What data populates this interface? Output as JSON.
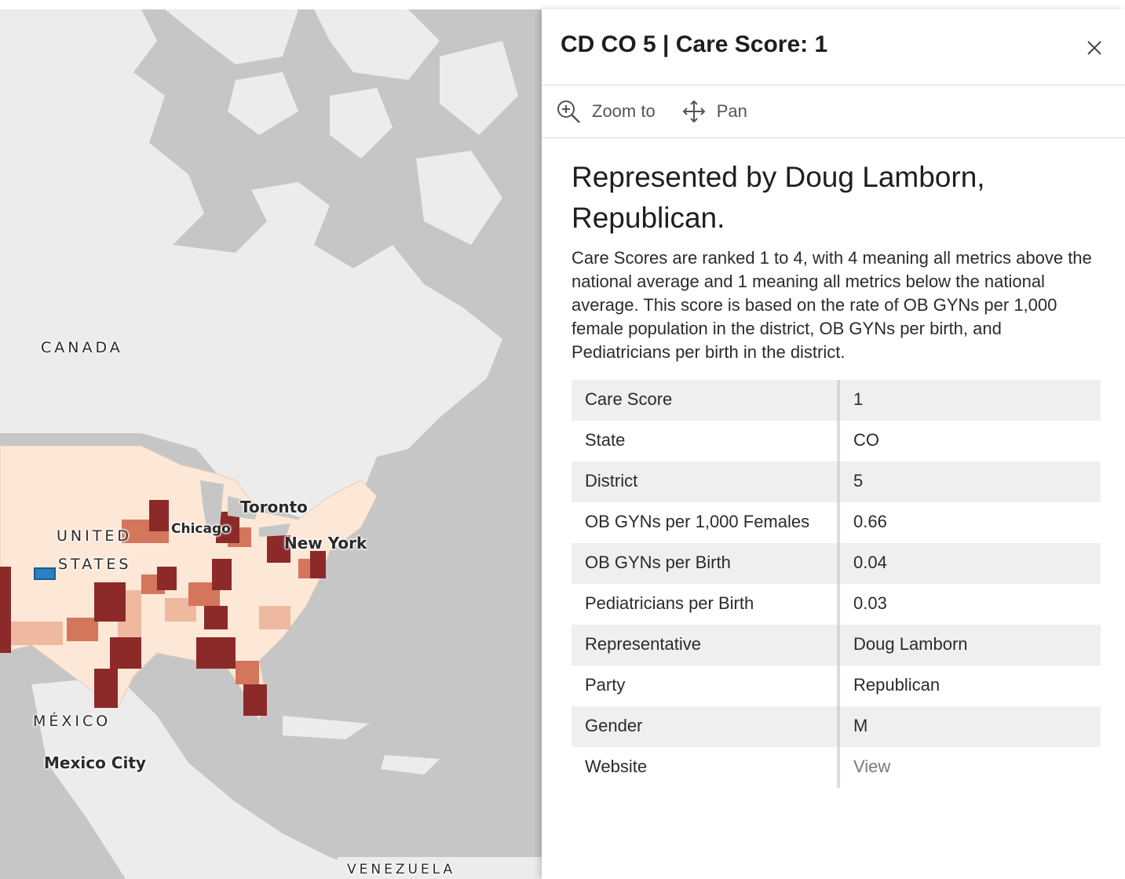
{
  "map": {
    "labels": {
      "canada": "CANADA",
      "united": "UNITED",
      "states": "STATES",
      "mexico": "MÉXICO",
      "mexico_city": "Mexico City",
      "chicago": "Chicago",
      "toronto": "Toronto",
      "new_york": "New York",
      "venezuela": "VENEZUELA"
    },
    "colors": {
      "water": "#c6c6c6",
      "land": "#ececec",
      "score_1": "#8c2a2a",
      "score_2": "#d4765c",
      "score_3": "#efb9a0",
      "score_4": "#fde8d7",
      "selected_outline": "#2e7fbf"
    }
  },
  "popup": {
    "title": "CD CO 5 | Care Score: 1",
    "close_icon": "close-icon",
    "actions": [
      {
        "label": "Zoom to",
        "icon": "zoom-in-icon"
      },
      {
        "label": "Pan",
        "icon": "move-icon"
      }
    ],
    "heading": "Represented by Doug Lamborn, Republican.",
    "description": "Care Scores are ranked 1 to 4, with 4 meaning all metrics above the national average and 1 meaning all metrics below the national average. This score is based on the rate of OB GYNs per 1,000 female population in the district, OB GYNs per birth, and Pediatricians per birth in the district.",
    "fields": [
      {
        "key": "Care Score",
        "value": "1"
      },
      {
        "key": "State",
        "value": "CO"
      },
      {
        "key": "District",
        "value": "5"
      },
      {
        "key": "OB GYNs per 1,000 Females",
        "value": "0.66"
      },
      {
        "key": "OB GYNs per Birth",
        "value": "0.04"
      },
      {
        "key": "Pediatricians per Birth",
        "value": "0.03"
      },
      {
        "key": "Representative",
        "value": "Doug Lamborn"
      },
      {
        "key": "Party",
        "value": "Republican"
      },
      {
        "key": "Gender",
        "value": "M"
      },
      {
        "key": "Website",
        "value": "View"
      }
    ]
  }
}
